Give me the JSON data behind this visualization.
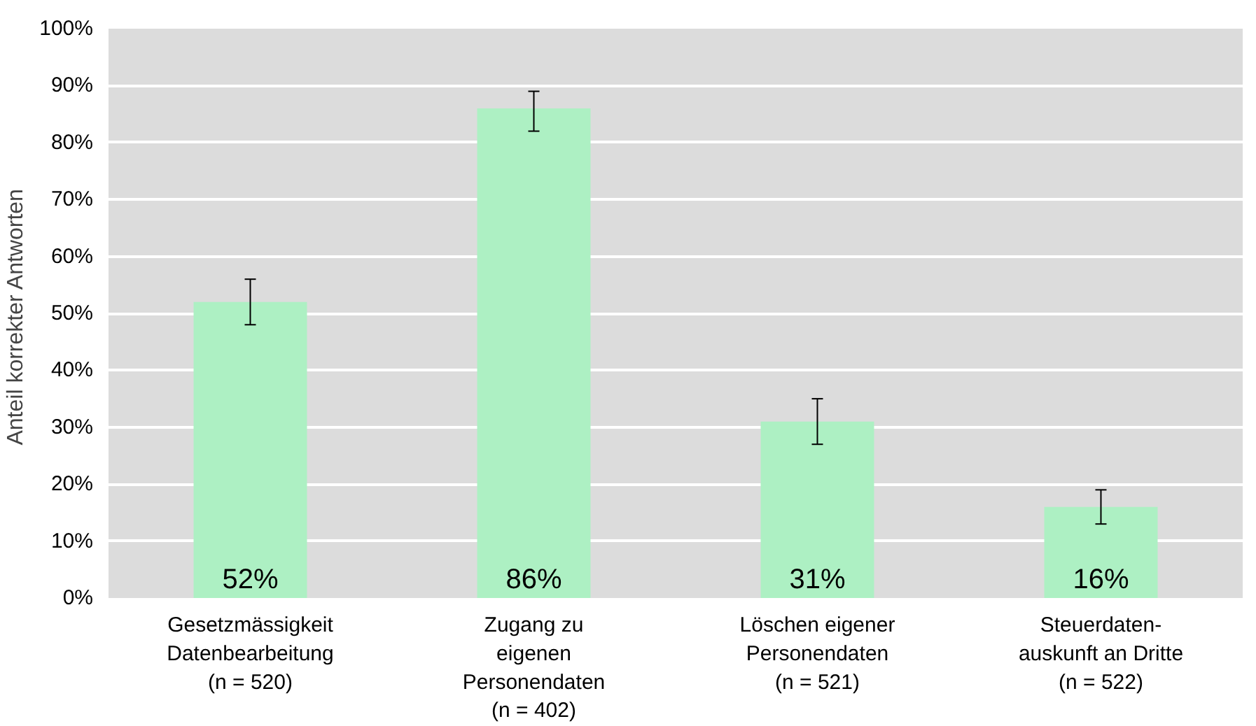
{
  "chart_data": {
    "type": "bar",
    "ylabel": "Anteil korrekter  Antworten",
    "categories": [
      "Gesetzmässigkeit\nDatenbearbeitung\n(n = 520)",
      "Zugang zu\neigenen\nPersonendaten\n(n = 402)",
      "Löschen eigener\nPersonendaten\n(n = 521)",
      "Steuerdaten-\nauskunft an Dritte\n(n = 522)"
    ],
    "values": [
      52,
      86,
      31,
      16
    ],
    "color": "#adf0c3",
    "errors": [
      [
        48,
        56
      ],
      [
        82,
        89
      ],
      [
        27,
        35
      ],
      [
        13,
        19
      ]
    ],
    "ylim": [
      0,
      100
    ],
    "yticks": [
      {
        "value": 0,
        "label": "0%"
      },
      {
        "value": 10,
        "label": "10%"
      },
      {
        "value": 20,
        "label": "20%"
      },
      {
        "value": 30,
        "label": "30%"
      },
      {
        "value": 40,
        "label": "40%"
      },
      {
        "value": 50,
        "label": "50%"
      },
      {
        "value": 60,
        "label": "60%"
      },
      {
        "value": 70,
        "label": "70%"
      },
      {
        "value": 80,
        "label": "80%"
      },
      {
        "value": 90,
        "label": "90%"
      },
      {
        "value": 100,
        "label": "100%"
      }
    ],
    "value_labels": [
      "52%",
      "86%",
      "31%",
      "16%"
    ],
    "grid": "y"
  }
}
